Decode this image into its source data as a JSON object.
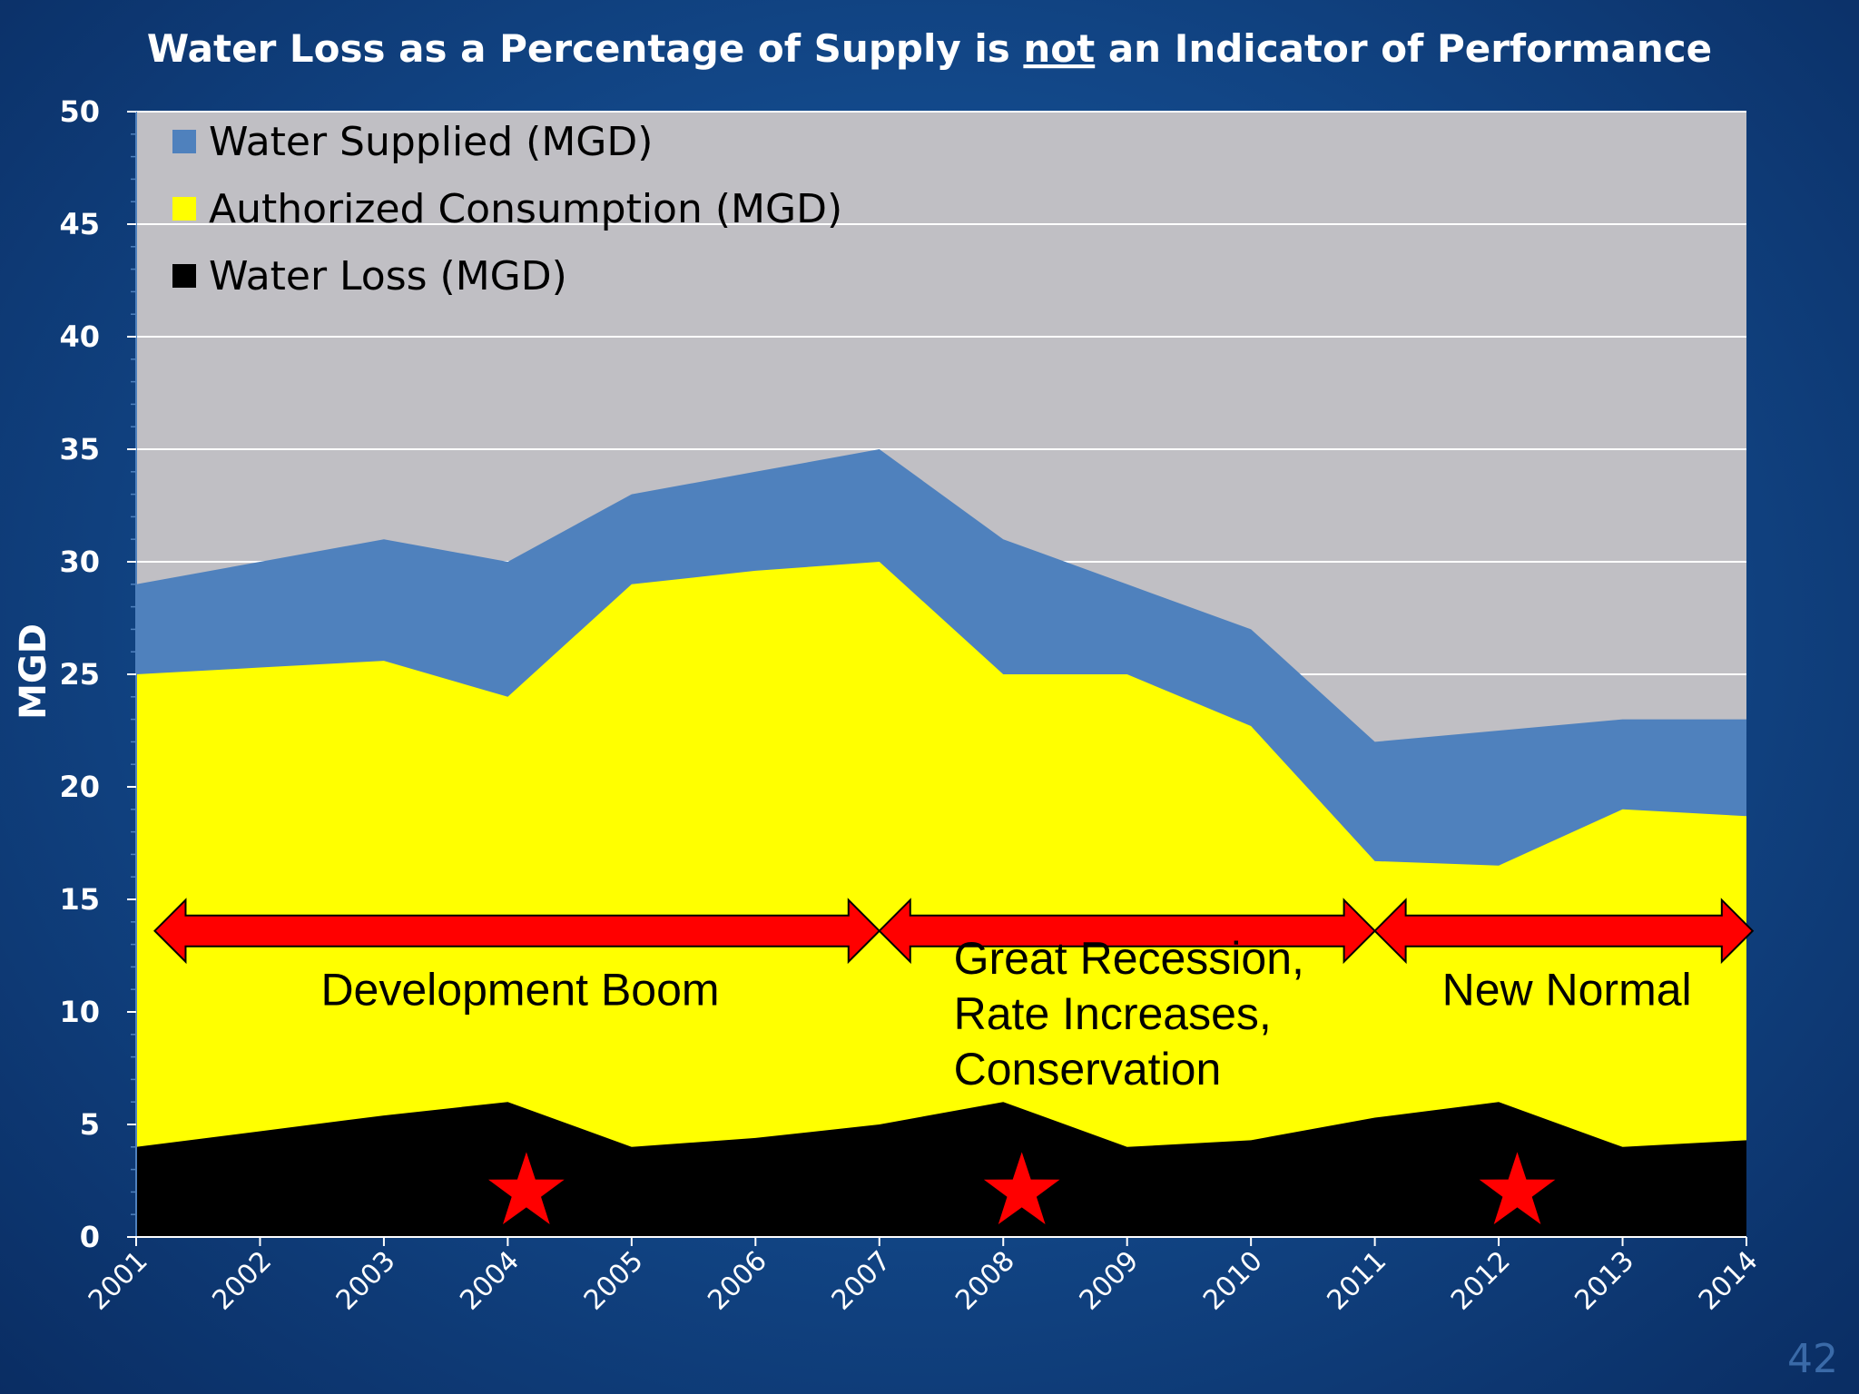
{
  "slide_number": "42",
  "chart_data": {
    "type": "area",
    "title_parts": [
      "Water Loss as a Percentage of Supply is ",
      "not",
      " an Indicator of Performance"
    ],
    "ylabel": "MGD",
    "xlabel": "",
    "ylim": [
      0,
      50
    ],
    "yticks": [
      0,
      5,
      10,
      15,
      20,
      25,
      30,
      35,
      40,
      45,
      50
    ],
    "x": [
      "2001",
      "2002",
      "2003",
      "2004",
      "2005",
      "2006",
      "2007",
      "2008",
      "2009",
      "2010",
      "2011",
      "2012",
      "2013",
      "2014"
    ],
    "grid": true,
    "legend_placement": "top-left",
    "series": [
      {
        "name": "Water Supplied (MGD)",
        "color": "#4f81bd",
        "values": [
          29,
          30,
          31,
          30,
          33,
          34,
          35,
          31,
          29,
          27,
          22,
          22.5,
          23,
          23
        ]
      },
      {
        "name": "Authorized Consumption (MGD)",
        "color": "#ffff00",
        "values": [
          25,
          25.3,
          25.6,
          24,
          29,
          29.6,
          30,
          25,
          25,
          22.7,
          16.7,
          16.5,
          19,
          18.7
        ]
      },
      {
        "name": "Water Loss (MGD)",
        "color": "#000000",
        "values": [
          4,
          4.7,
          5.4,
          6,
          4,
          4.4,
          5,
          6,
          4,
          4.3,
          5.3,
          6,
          4,
          4.3
        ]
      }
    ],
    "plot_background": "#c0bfc4",
    "annotations": {
      "arrows": [
        {
          "from": 2001.15,
          "to": 2007,
          "y": 13.6
        },
        {
          "from": 2007,
          "to": 2011,
          "y": 13.6
        },
        {
          "from": 2011,
          "to": 2014.05,
          "y": 13.6
        }
      ],
      "arrow_color": "#ff0000",
      "labels": [
        {
          "lines": [
            "Development Boom"
          ],
          "x": 2004.1,
          "y": 10.3,
          "anchor": "middle"
        },
        {
          "lines": [
            "Great Recession,",
            "Rate Increases,",
            "Conservation"
          ],
          "x": 2007.6,
          "y": 11.7,
          "anchor": "start"
        },
        {
          "lines": [
            "New Normal"
          ],
          "x": 2012.55,
          "y": 10.3,
          "anchor": "middle"
        }
      ],
      "stars": [
        {
          "x": 2004.15,
          "y": 2
        },
        {
          "x": 2008.15,
          "y": 2
        },
        {
          "x": 2012.15,
          "y": 2
        }
      ],
      "star_color": "#ff0000"
    }
  }
}
